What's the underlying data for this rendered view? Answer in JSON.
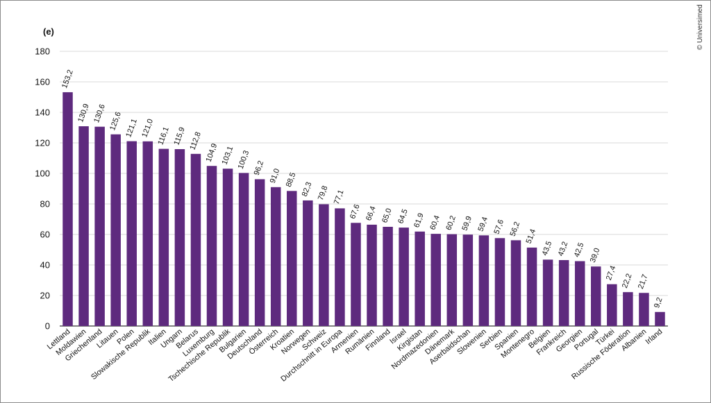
{
  "panel_label": "(e)",
  "credit": "© Universimed",
  "colors": {
    "bar": "#5e2a7e",
    "grid": "#d9d9d9",
    "axis": "#333333"
  },
  "chart_data": {
    "type": "bar",
    "title": "",
    "xlabel": "",
    "ylabel": "",
    "ylim": [
      0,
      180
    ],
    "yticks": [
      0,
      20,
      40,
      60,
      80,
      100,
      120,
      140,
      160,
      180
    ],
    "grid": true,
    "categories": [
      "Lettland",
      "Moldawien",
      "Griechenland",
      "Litauen",
      "Polen",
      "Slowakische Republik",
      "Italien",
      "Ungarn",
      "Belarus",
      "Luxemburg",
      "Tschechische Republik",
      "Bulgarien",
      "Deutschland",
      "Österreich",
      "Kroatien",
      "Norwegen",
      "Schweiz",
      "Durchschnitt in Europa",
      "Armenien",
      "Rumänien",
      "Finnland",
      "Israel",
      "Kirgistan",
      "Nordmazedonien",
      "Dänemark",
      "Aserbaidschan",
      "Slowenien",
      "Serbien",
      "Spanien",
      "Montenegro",
      "Belgien",
      "Frankreich",
      "Georgien",
      "Portugal",
      "Türkei",
      "Russische Föderation",
      "Albanien",
      "Irland"
    ],
    "values": [
      153.2,
      130.9,
      130.6,
      125.6,
      121.1,
      121.0,
      116.1,
      115.9,
      112.8,
      104.9,
      103.1,
      100.3,
      96.2,
      91.0,
      88.5,
      82.3,
      79.8,
      77.1,
      67.6,
      66.4,
      65.0,
      64.5,
      61.9,
      60.4,
      60.2,
      59.9,
      59.4,
      57.6,
      56.2,
      51.4,
      43.5,
      43.2,
      42.5,
      39.0,
      27.4,
      22.2,
      21.7,
      9.2
    ],
    "value_labels": [
      "153,2",
      "130,9",
      "130,6",
      "125,6",
      "121,1",
      "121,0",
      "116,1",
      "115,9",
      "112,8",
      "104,9",
      "103,1",
      "100,3",
      "96,2",
      "91,0",
      "88,5",
      "82,3",
      "79,8",
      "77,1",
      "67,6",
      "66,4",
      "65,0",
      "64,5",
      "61,9",
      "60,4",
      "60,2",
      "59,9",
      "59,4",
      "57,6",
      "56,2",
      "51,4",
      "43,5",
      "43,2",
      "42,5",
      "39,0",
      "27,4",
      "22,2",
      "21,7",
      "9,2"
    ]
  }
}
